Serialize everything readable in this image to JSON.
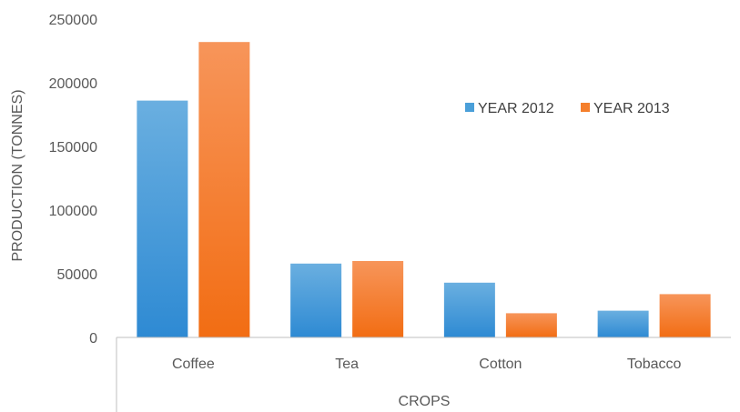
{
  "chart_data": {
    "type": "bar",
    "categories": [
      "Coffee",
      "Tea",
      "Cotton",
      "Tobacco"
    ],
    "series": [
      {
        "name": "YEAR 2012",
        "values": [
          186000,
          58000,
          43000,
          21000
        ],
        "color": "#4a9fd9"
      },
      {
        "name": "YEAR 2013",
        "values": [
          232000,
          60000,
          19000,
          34000
        ],
        "color": "#f57f2c"
      }
    ],
    "title": "",
    "xlabel": "CROPS",
    "ylabel": "PRODUCTION (TONNES)",
    "ylim": [
      0,
      250000
    ],
    "yticks": [
      "0",
      "50000",
      "100000",
      "150000",
      "200000",
      "250000"
    ],
    "grid": false,
    "legend_position": "right"
  }
}
